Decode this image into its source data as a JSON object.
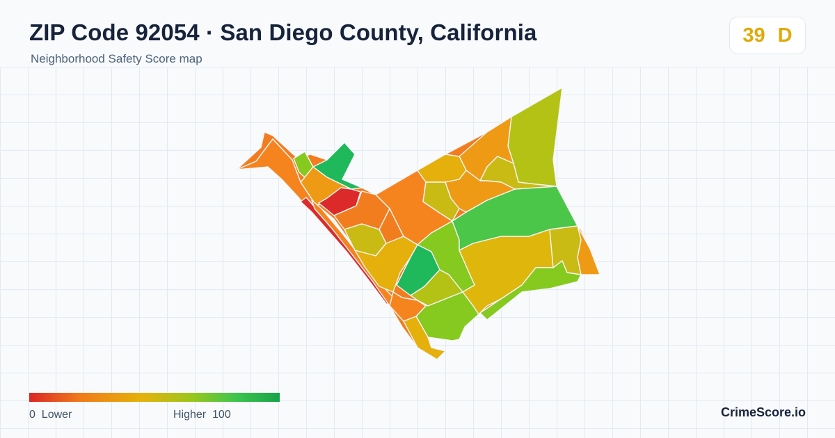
{
  "header": {
    "title": "ZIP Code 92054 · San Diego County, California",
    "subtitle": "Neighborhood Safety Score map"
  },
  "score_badge": {
    "score": "39",
    "grade": "D",
    "color": "#e0aa0b"
  },
  "legend": {
    "min_value": "0",
    "min_label": "Lower",
    "max_value": "100",
    "max_label": "Higher",
    "gradient_colors": [
      "#dc2626",
      "#f07a1a",
      "#e5b20b",
      "#9ac61b",
      "#3ec64d",
      "#16a34a"
    ]
  },
  "map": {
    "region_colors": {
      "red": "#dc2a2a",
      "orange": "#f27d1f",
      "dark_orange": "#f5841f",
      "light_orange": "#ee9a15",
      "amber": "#e5af0c",
      "yellow": "#dfb70c",
      "olive": "#c9bb14",
      "yellow_green": "#b4c216",
      "lime": "#86c91f",
      "green": "#4cc648",
      "emerald": "#1fb85a"
    }
  },
  "brand": "CrimeScore.io"
}
